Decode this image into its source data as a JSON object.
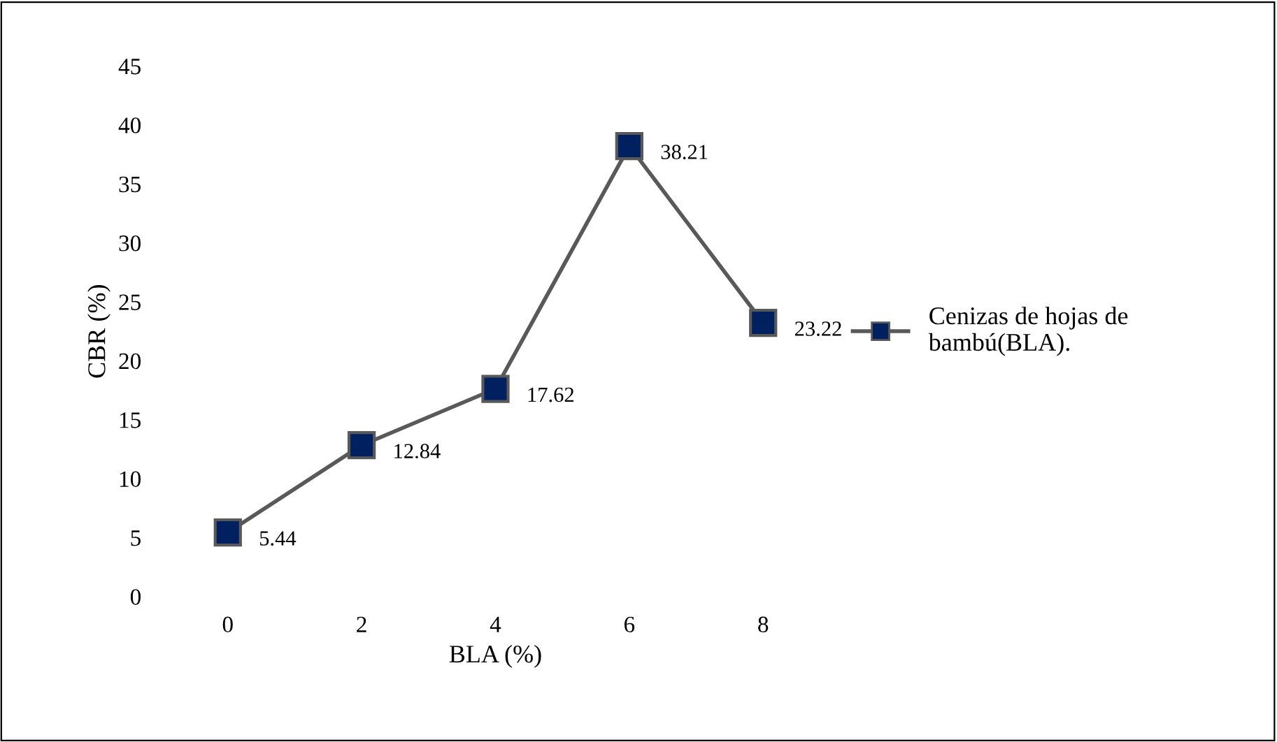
{
  "chart_data": {
    "type": "line",
    "xlabel": "BLA (%)",
    "ylabel": "CBR (%)",
    "categories": [
      "0",
      "2",
      "4",
      "6",
      "8"
    ],
    "series": [
      {
        "name": "Cenizas de hojas de bambú(BLA).",
        "color": "#002060",
        "values": [
          5.44,
          12.84,
          17.62,
          38.21,
          23.22
        ]
      }
    ],
    "ylim": [
      0,
      45
    ],
    "yticks": [
      0,
      5,
      10,
      15,
      20,
      25,
      30,
      35,
      40,
      45
    ],
    "marker": "square",
    "line_style": "solid",
    "data_labels": true,
    "legend": "right",
    "grid": false
  }
}
